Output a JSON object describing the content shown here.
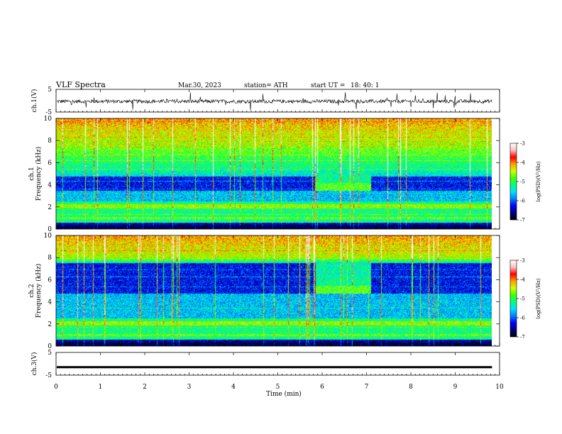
{
  "header": {
    "title": "VLF  Spectra",
    "date": "Mar.30, 2023",
    "station": "station= ATH",
    "start_label": "start  UT  =",
    "start_time": "18: 40: 1"
  },
  "chart_data": [
    {
      "type": "line",
      "name": "ch1-waveform",
      "ylabel": "ch.1(V)",
      "ylim": [
        -5,
        5
      ],
      "yticks": [
        "5",
        "-5"
      ],
      "xlim": [
        0,
        10
      ],
      "baseline": -0.3,
      "x_end": 9.83
    },
    {
      "type": "heatmap",
      "name": "ch1-spectrogram",
      "ylabel_top": "ch.1",
      "ylabel": "Frequency  (kHz)",
      "ylim": [
        0,
        10
      ],
      "yticks": [
        "0",
        "2",
        "4",
        "6",
        "8",
        "10"
      ],
      "xlim": [
        0,
        10
      ],
      "x_end": 9.83,
      "colorbar": {
        "label": "log(PSD)(V²/Hz)",
        "ticks": [
          "-3",
          "-4",
          "-5",
          "-6",
          "-7"
        ],
        "range": [
          -7,
          -3
        ]
      },
      "quiet_band_khz": [
        3.5,
        4.8
      ],
      "enhanced_window_min": [
        5.85,
        7.1
      ]
    },
    {
      "type": "heatmap",
      "name": "ch2-spectrogram",
      "ylabel_top": "ch.2",
      "ylabel": "Frequency  (kHz)",
      "ylim": [
        0,
        10
      ],
      "yticks": [
        "0",
        "2",
        "4",
        "6",
        "8",
        "10"
      ],
      "xlim": [
        0,
        10
      ],
      "x_end": 9.83,
      "colorbar": {
        "label": "log(PSD)(V²/Hz)",
        "ticks": [
          "-3",
          "-4",
          "-5",
          "-6",
          "-7"
        ],
        "range": [
          -7,
          -3
        ]
      },
      "quiet_band_khz": [
        4.8,
        7.5
      ],
      "enhanced_window_min": [
        5.85,
        7.1
      ]
    },
    {
      "type": "line",
      "name": "ch3-waveform",
      "ylabel": "ch.3(V)",
      "ylim": [
        -5,
        5
      ],
      "yticks": [
        "5",
        "-5"
      ],
      "xlim": [
        0,
        10
      ],
      "baseline": -1.5,
      "x_end": 9.83,
      "xlabel": "Time  (min)",
      "xticks": [
        "0",
        "1",
        "2",
        "3",
        "4",
        "5",
        "6",
        "7",
        "8",
        "9",
        "10"
      ]
    }
  ],
  "colors": {
    "colormap": [
      "#000000",
      "#000080",
      "#0000ff",
      "#0080ff",
      "#00e0ff",
      "#00ff80",
      "#40ff00",
      "#d0ff00",
      "#ffa000",
      "#ff0000",
      "#ffc0c0",
      "#ffffff"
    ]
  }
}
